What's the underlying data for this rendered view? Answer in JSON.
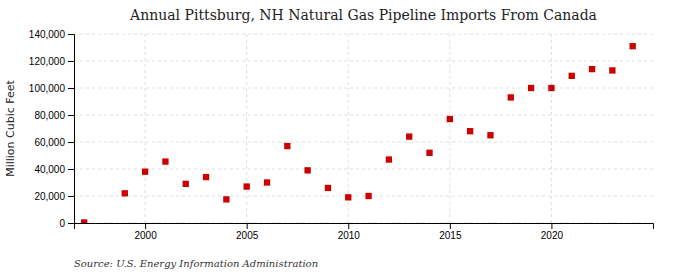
{
  "chart_data": {
    "type": "scatter",
    "title": "Annual Pittsburg, NH Natural Gas Pipeline Imports From Canada",
    "y_label": "Million Cubic Feet",
    "annotations": [
      "Source: U.S. Energy Information Administration"
    ],
    "x": [
      1997,
      1999,
      2000,
      2001,
      2002,
      2003,
      2004,
      2005,
      2006,
      2007,
      2008,
      2009,
      2010,
      2011,
      2012,
      2013,
      2014,
      2015,
      2016,
      2017,
      2018,
      2019,
      2020,
      2021,
      2022,
      2023,
      2024
    ],
    "values": [
      400,
      22000,
      38000,
      45500,
      29000,
      34000,
      17500,
      27000,
      30000,
      57000,
      39000,
      26000,
      19000,
      20000,
      47000,
      64000,
      52000,
      77000,
      68000,
      65000,
      93000,
      100000,
      100000,
      109000,
      114000,
      113000,
      131000
    ],
    "color": "#cc0000",
    "marker": "square",
    "xlim": [
      1996.5,
      2025
    ],
    "xticks": [
      2000,
      2005,
      2010,
      2015,
      2020
    ],
    "ylim": [
      0,
      140000
    ],
    "yticks": [
      0,
      {
        "value": 20000,
        "label": "20,000"
      },
      {
        "value": 40000,
        "label": "40,000"
      },
      {
        "value": 60000,
        "label": "60,000"
      },
      {
        "value": 80000,
        "label": "80,000"
      },
      {
        "value": 100000,
        "label": "100,000"
      },
      {
        "value": 120000,
        "label": "120,000"
      },
      {
        "value": 140000,
        "label": "140,000"
      }
    ],
    "grid": true
  }
}
